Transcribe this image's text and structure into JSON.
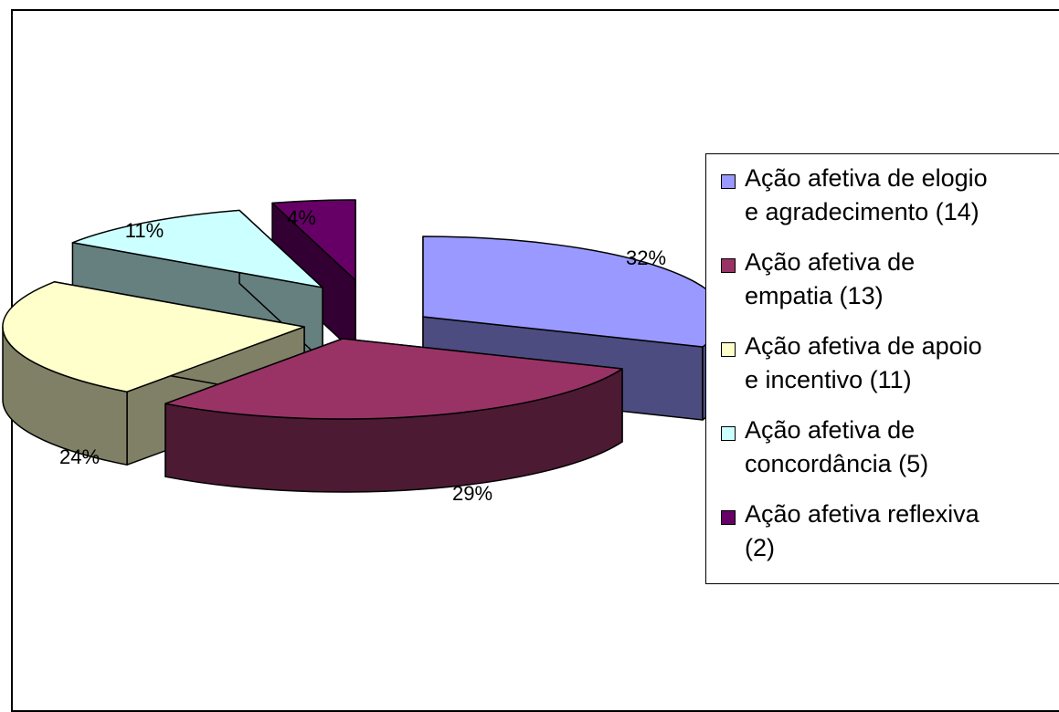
{
  "chart_data": {
    "type": "pie",
    "style": "3d-exploded",
    "slices": [
      {
        "label": "Ação afetiva de elogio e agradecimento (14)",
        "value": 14,
        "percent_label": "32%",
        "color": "#9999ff",
        "side_color": "#4c4c80"
      },
      {
        "label": "Ação afetiva de empatia (13)",
        "value": 13,
        "percent_label": "29%",
        "color": "#993366",
        "side_color": "#4c1a33"
      },
      {
        "label": "Ação afetiva de apoio e incentivo (11)",
        "value": 11,
        "percent_label": "24%",
        "color": "#ffffcc",
        "side_color": "#808066"
      },
      {
        "label": "Ação afetiva de concordância (5)",
        "value": 5,
        "percent_label": "11%",
        "color": "#ccffff",
        "side_color": "#668080"
      },
      {
        "label": "Ação afetiva reflexiva (2)",
        "value": 2,
        "percent_label": "4%",
        "color": "#660066",
        "side_color": "#330033"
      }
    ],
    "legend_position": "right",
    "grid": false
  }
}
